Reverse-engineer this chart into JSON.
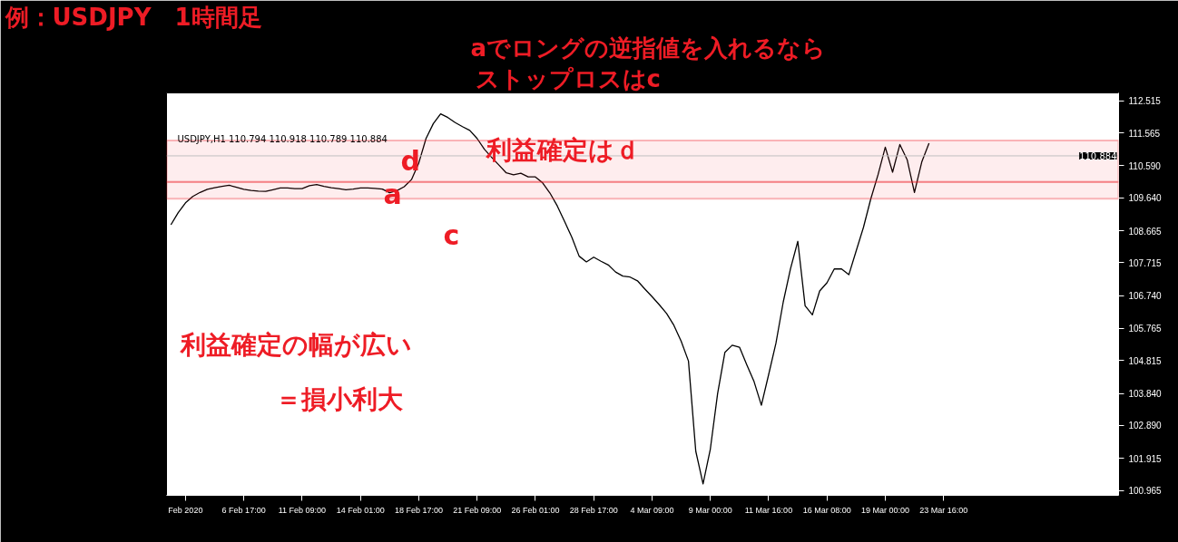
{
  "chart_data": {
    "type": "line",
    "title": "例：USDJPY　1時間足",
    "annotations": [
      "USDJPY,H1  110.794 110.918 110.789 110.884",
      "aでロングの逆指値を入れるなら",
      "ストップロスはc",
      "利益確定はｄ",
      "利益確定の幅が広い",
      "＝損小利大",
      "a",
      "d",
      "c"
    ],
    "categories": [
      null,
      null,
      "Feb 2020",
      null,
      null,
      null,
      null,
      null,
      null,
      null,
      "6 Feb 17:00",
      null,
      null,
      null,
      null,
      null,
      null,
      null,
      "11 Feb 09:00",
      null,
      null,
      null,
      null,
      null,
      null,
      null,
      "14 Feb 01:00",
      null,
      null,
      null,
      null,
      null,
      null,
      null,
      "18 Feb 17:00",
      null,
      null,
      null,
      null,
      null,
      null,
      null,
      "21 Feb 09:00",
      null,
      null,
      null,
      null,
      null,
      null,
      null,
      "26 Feb 01:00",
      null,
      null,
      null,
      null,
      null,
      null,
      null,
      "28 Feb 17:00",
      null,
      null,
      null,
      null,
      null,
      null,
      null,
      "4 Mar 09:00",
      null,
      null,
      null,
      null,
      null,
      null,
      null,
      "9 Mar 00:00",
      null,
      null,
      null,
      null,
      null,
      null,
      null,
      "11 Mar 16:00",
      null,
      null,
      null,
      null,
      null,
      null,
      null,
      "16 Mar 08:00",
      null,
      null,
      null,
      null,
      null,
      null,
      null,
      "19 Mar 00:00",
      null,
      null,
      null,
      null,
      null,
      null,
      null,
      "23 Mar 16:00"
    ],
    "series": [
      {
        "color": "#000000",
        "values": [
          108.84,
          109.2,
          109.49,
          109.68,
          109.8,
          109.89,
          109.94,
          109.98,
          110.01,
          109.95,
          109.89,
          109.86,
          109.84,
          109.83,
          109.88,
          109.93,
          109.93,
          109.91,
          109.91,
          110.0,
          110.03,
          109.98,
          109.94,
          109.91,
          109.88,
          109.9,
          109.93,
          109.93,
          109.92,
          109.9,
          109.79,
          109.85,
          109.97,
          110.18,
          110.67,
          111.4,
          111.84,
          112.13,
          112.02,
          111.87,
          111.75,
          111.64,
          111.4,
          111.08,
          110.84,
          110.61,
          110.38,
          110.32,
          110.37,
          110.26,
          110.26,
          110.08,
          109.78,
          109.4,
          108.94,
          108.47,
          107.91,
          107.74,
          107.88,
          107.76,
          107.65,
          107.44,
          107.32,
          107.29,
          107.18,
          106.94,
          106.71,
          106.47,
          106.21,
          105.86,
          105.39,
          104.8,
          102.13,
          101.16,
          102.19,
          103.84,
          105.06,
          105.27,
          105.21,
          104.69,
          104.19,
          103.49,
          104.4,
          105.33,
          106.55,
          107.54,
          108.35,
          106.44,
          106.17,
          106.88,
          107.12,
          107.53,
          107.53,
          107.36,
          108.06,
          108.76,
          109.6,
          110.32,
          111.14,
          110.4,
          111.22,
          110.77,
          109.8,
          110.7,
          111.26,
          null,
          null
        ]
      }
    ],
    "ylim": [
      100.82,
      112.75
    ],
    "yticks": [
      {
        "value": 112.515,
        "label": "112.515"
      },
      {
        "value": 111.565,
        "label": "111.565"
      },
      {
        "value": 110.59,
        "label": "110.590"
      },
      {
        "value": 109.64,
        "label": "109.640"
      },
      {
        "value": 108.665,
        "label": "108.665"
      },
      {
        "value": 107.715,
        "label": "107.715"
      },
      {
        "value": 106.74,
        "label": "106.740"
      },
      {
        "value": 105.765,
        "label": "105.765"
      },
      {
        "value": 104.815,
        "label": "104.815"
      },
      {
        "value": 103.84,
        "label": "103.840"
      },
      {
        "value": 102.89,
        "label": "102.890"
      },
      {
        "value": 101.915,
        "label": "101.915"
      },
      {
        "value": 100.965,
        "label": "100.965"
      }
    ],
    "ref_lines": [
      {
        "axis": "y",
        "value": 110.884,
        "label": "110.884",
        "color": "#c0c0c0"
      }
    ],
    "bands": [
      {
        "axis": "y",
        "from": 110.11,
        "to": 111.34,
        "color": "#ee1c25"
      },
      {
        "axis": "y",
        "from": 109.61,
        "to": 110.11,
        "color": "#ee1c25"
      }
    ],
    "grid": false,
    "marker": "none",
    "line_style": "solid"
  }
}
